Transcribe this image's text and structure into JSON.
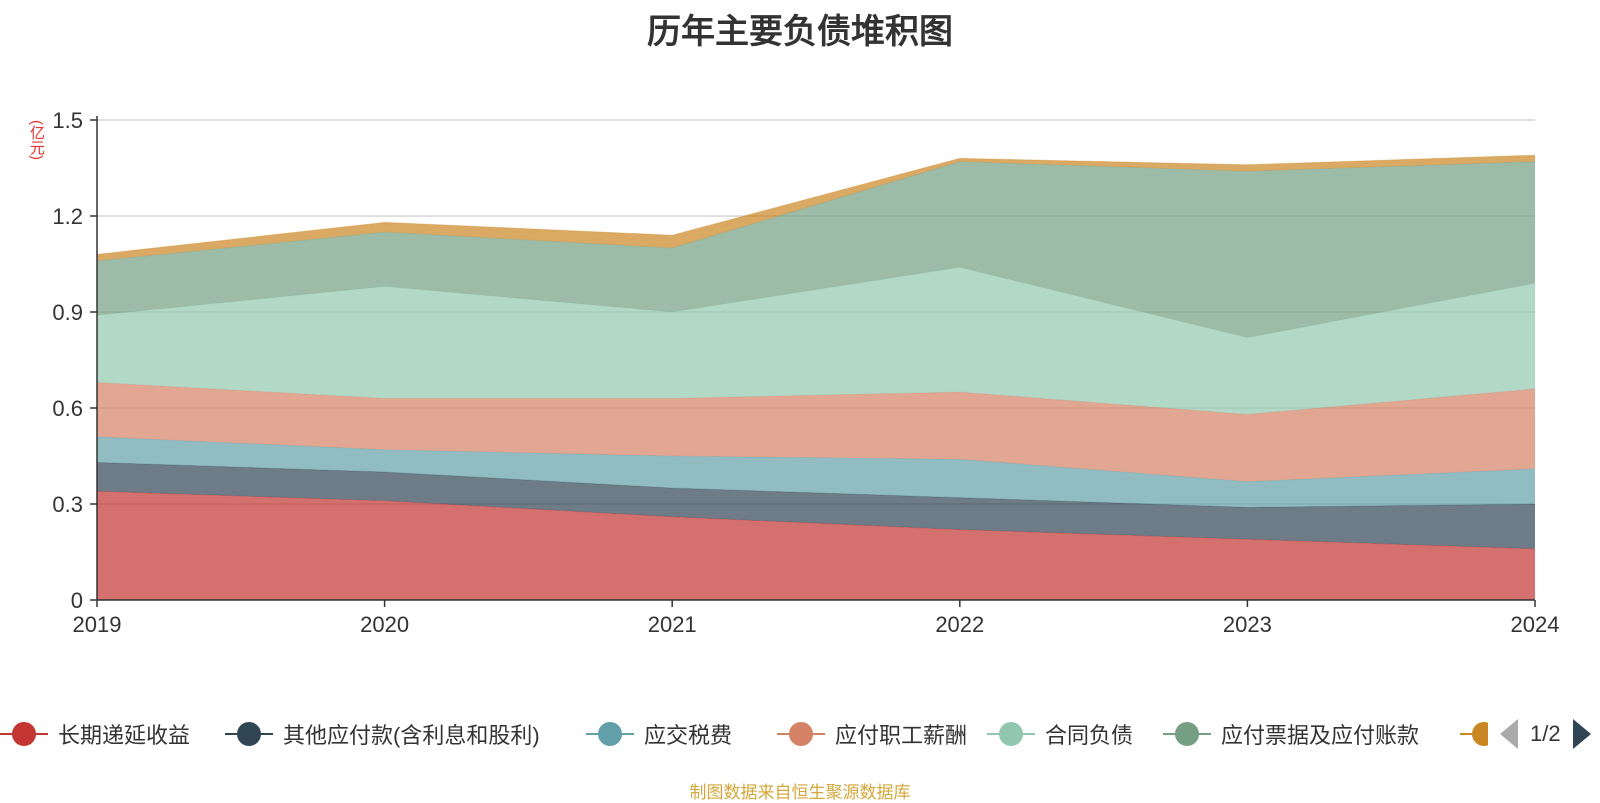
{
  "title": "历年主要负债堆积图",
  "unit_label": "(亿元)",
  "source_text": "制图数据来自恒生聚源数据库",
  "pager": {
    "text": "1/2",
    "prev_icon": "triangle-left-icon",
    "next_icon": "triangle-right-icon"
  },
  "legend": [
    {
      "label": "长期递延收益",
      "color": "#c23531"
    },
    {
      "label": "其他应付款(含利息和股利)",
      "color": "#2f4554"
    },
    {
      "label": "应交税费",
      "color": "#61a0a8"
    },
    {
      "label": "应付职工薪酬",
      "color": "#d48265"
    },
    {
      "label": "合同负债",
      "color": "#91c7ae"
    },
    {
      "label": "应付票据及应付账款",
      "color": "#749f83"
    },
    {
      "label": "",
      "color": "#ca8622"
    }
  ],
  "chart_data": {
    "type": "area",
    "stacked": true,
    "categories": [
      "2019",
      "2020",
      "2021",
      "2022",
      "2023",
      "2024"
    ],
    "yticks": [
      "0",
      "0.3",
      "0.6",
      "0.9",
      "1.2",
      "1.5"
    ],
    "ylim": [
      0,
      1.5
    ],
    "ylabel": "(亿元)",
    "grid": true,
    "legend_position": "bottom",
    "series": [
      {
        "name": "长期递延收益",
        "color": "#c23531",
        "values": [
          0.34,
          0.31,
          0.26,
          0.22,
          0.19,
          0.16
        ]
      },
      {
        "name": "其他应付款(含利息和股利)",
        "color": "#2f4554",
        "values": [
          0.09,
          0.09,
          0.09,
          0.1,
          0.1,
          0.14
        ]
      },
      {
        "name": "应交税费",
        "color": "#61a0a8",
        "values": [
          0.08,
          0.07,
          0.1,
          0.12,
          0.08,
          0.11
        ]
      },
      {
        "name": "应付职工薪酬",
        "color": "#d48265",
        "values": [
          0.17,
          0.16,
          0.18,
          0.21,
          0.21,
          0.25
        ]
      },
      {
        "name": "合同负债",
        "color": "#91c7ae",
        "values": [
          0.21,
          0.35,
          0.27,
          0.39,
          0.24,
          0.33
        ]
      },
      {
        "name": "应付票据及应付账款",
        "color": "#749f83",
        "values": [
          0.17,
          0.17,
          0.2,
          0.33,
          0.52,
          0.38
        ]
      },
      {
        "name": "",
        "color": "#ca8622",
        "values": [
          0.02,
          0.03,
          0.04,
          0.01,
          0.02,
          0.02
        ]
      }
    ]
  }
}
